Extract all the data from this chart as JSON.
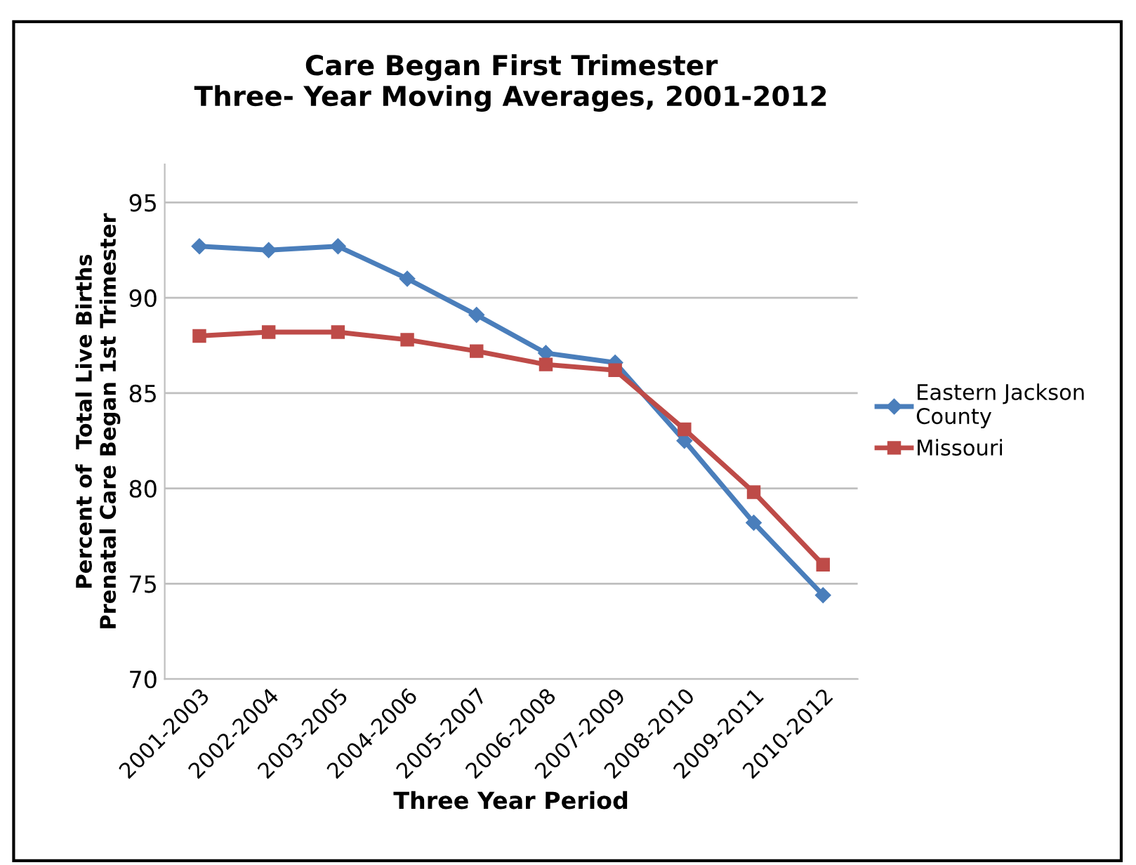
{
  "chart_data": {
    "type": "line",
    "title": "Care Began First Trimester\nThree- Year Moving Averages, 2001-2012",
    "xlabel": "Three Year Period",
    "ylabel": "Percent of  Total Live Births\nPrenatal Care Began 1st Trimester",
    "categories": [
      "2001-2003",
      "2002-2004",
      "2003-2005",
      "2004-2006",
      "2005-2007",
      "2006-2008",
      "2007-2009",
      "2008-2010",
      "2009-2011",
      "2010-2012"
    ],
    "series": [
      {
        "name": "Eastern Jackson\nCounty",
        "color": "#4a7ebb",
        "marker": "diamond",
        "values": [
          92.7,
          92.5,
          92.7,
          91.0,
          89.1,
          87.1,
          86.6,
          82.5,
          78.2,
          74.4
        ]
      },
      {
        "name": "Missouri",
        "color": "#be4b48",
        "marker": "square",
        "values": [
          88.0,
          88.2,
          88.2,
          87.8,
          87.2,
          86.5,
          86.2,
          83.1,
          79.8,
          76.0
        ]
      }
    ],
    "ylim": [
      70,
      97
    ],
    "yticks": [
      70,
      75,
      80,
      85,
      90,
      95
    ],
    "grid": "y",
    "legend": "right"
  }
}
